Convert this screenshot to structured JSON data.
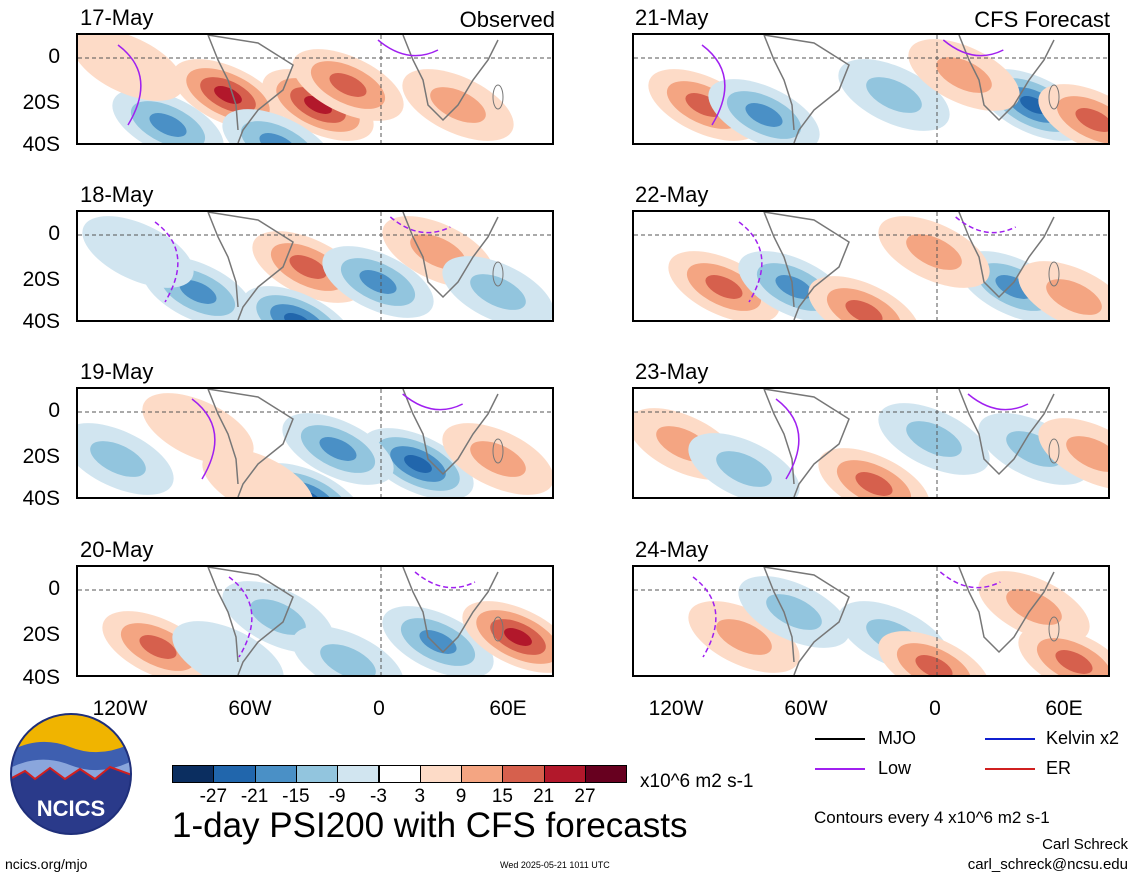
{
  "titles": {
    "observed": "Observed",
    "forecast": "CFS Forecast",
    "main": "1-day PSI200 with CFS forecasts"
  },
  "panels": {
    "left": [
      "17-May",
      "18-May",
      "19-May",
      "20-May"
    ],
    "right": [
      "21-May",
      "22-May",
      "23-May",
      "24-May"
    ]
  },
  "axes": {
    "lat_ticks": [
      "0",
      "20S",
      "40S"
    ],
    "lon_ticks": [
      "120W",
      "60W",
      "0",
      "60E"
    ]
  },
  "legend": {
    "mjo": "MJO",
    "kelvin": "Kelvin x2",
    "low": "Low",
    "er": "ER",
    "colors": {
      "mjo": "#000000",
      "kelvin": "#1020d0",
      "low": "#a020f0",
      "er": "#d02020"
    }
  },
  "colorbar": {
    "labels": [
      "-27",
      "-21",
      "-15",
      "-9",
      "-3",
      "3",
      "9",
      "15",
      "21",
      "27"
    ],
    "units": "x10^6 m2 s-1",
    "colors": [
      "#0b2e60",
      "#2166ac",
      "#4a90c6",
      "#92c5de",
      "#d1e5f0",
      "#ffffff",
      "#fddbc7",
      "#f4a582",
      "#d6604d",
      "#b2182b",
      "#67001f"
    ]
  },
  "footer": {
    "contours": "Contours every 4 x10^6 m2 s-1",
    "author": "Carl Schreck",
    "email": "carl_schreck@ncsu.edu",
    "site": "ncics.org/mjo",
    "timestamp": "Wed 2025-05-21 1011 UTC",
    "logo_text": "NCICS"
  }
}
